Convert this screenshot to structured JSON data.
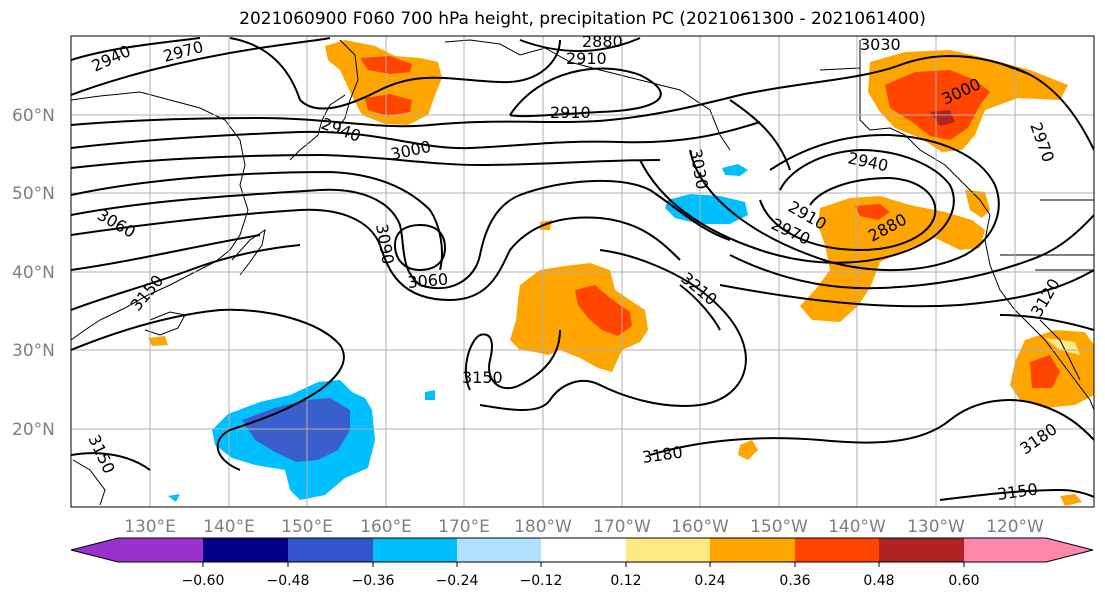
{
  "title": "2021060900 F060 700 hPa height, precipitation PC (2021061300 - 2021061400)",
  "lat_labels": [
    "60°N",
    "50°N",
    "40°N",
    "30°N",
    "20°N"
  ],
  "lon_labels": [
    "130°E",
    "140°E",
    "150°E",
    "160°E",
    "170°E",
    "180°W",
    "170°W",
    "160°W",
    "150°W",
    "140°W",
    "130°W",
    "120°W"
  ],
  "contour_labels": [
    "2940",
    "2970",
    "2880",
    "2910",
    "2910",
    "2940",
    "3000",
    "3030",
    "2940",
    "3000",
    "2970",
    "2910",
    "2880",
    "2970",
    "3030",
    "3060",
    "3090",
    "3060",
    "3150",
    "3210",
    "3150",
    "3120",
    "3150",
    "3180",
    "3180",
    "3150"
  ],
  "colorbar": {
    "ticks": [
      "−0.60",
      "−0.48",
      "−0.36",
      "−0.24",
      "−0.12",
      "0.12",
      "0.24",
      "0.36",
      "0.48",
      "0.60"
    ],
    "colors": [
      "#9932cc",
      "#00008b",
      "#3355cc",
      "#00bfff",
      "#b0e0ff",
      "#ffffff",
      "#ffe985",
      "#ffa500",
      "#ff4500",
      "#b22222",
      "#ff88aa"
    ]
  },
  "colors": {
    "neg_light": "#00bfff",
    "neg_mid": "#3a5fcd",
    "pos_light": "#ffa500",
    "pos_mid": "#ff4500",
    "pos_dark": "#b22222",
    "pos_pale": "#ffe985"
  }
}
